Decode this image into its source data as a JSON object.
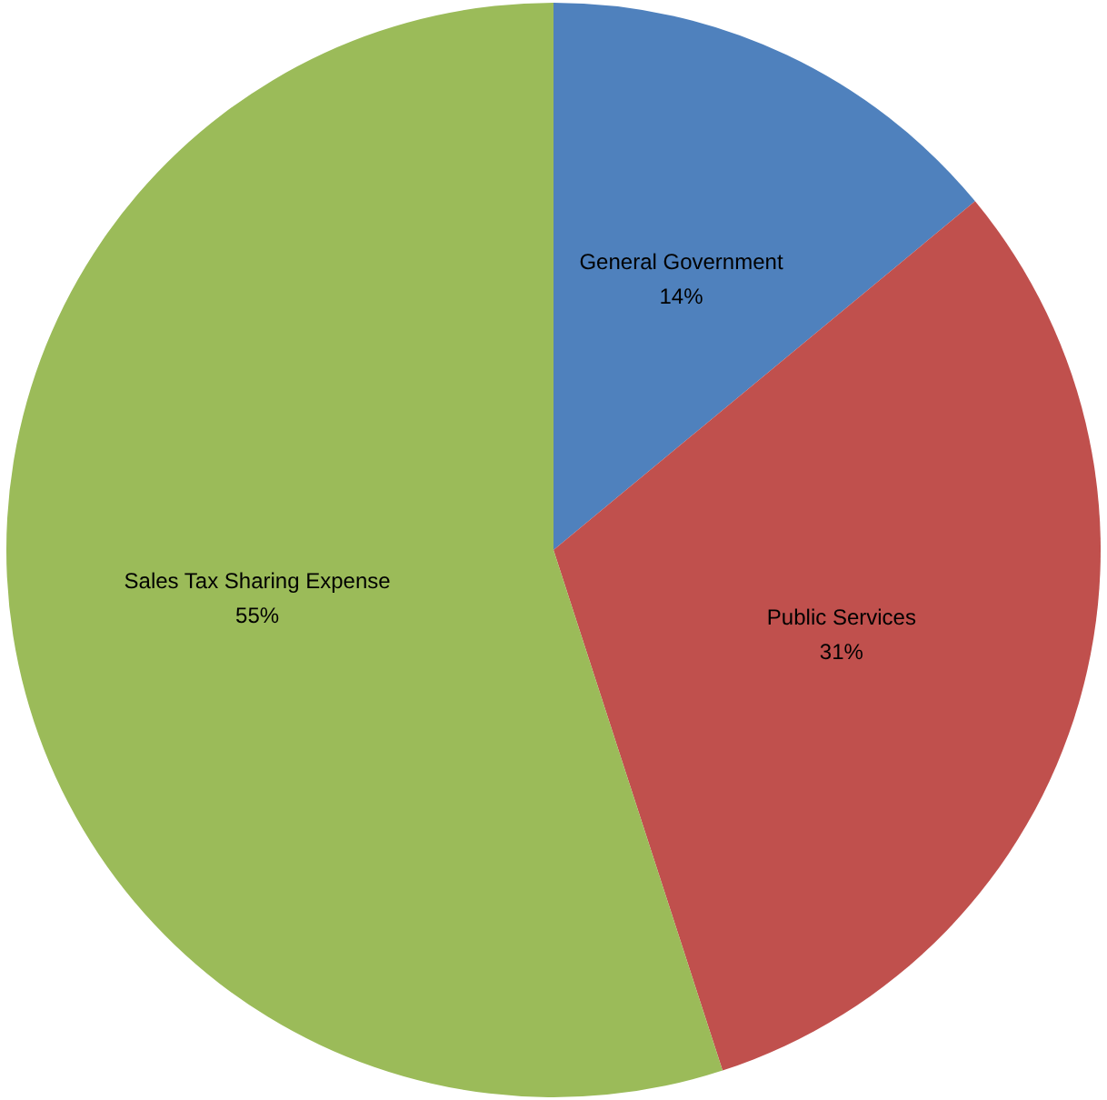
{
  "chart_data": {
    "type": "pie",
    "categories": [
      "General Government",
      "Public Services",
      "Sales Tax Sharing Expense"
    ],
    "values": [
      14,
      31,
      55
    ],
    "colors": [
      "#4f81bd",
      "#c0504d",
      "#9bbb59"
    ],
    "value_labels": [
      "14%",
      "31%",
      "55%"
    ]
  }
}
